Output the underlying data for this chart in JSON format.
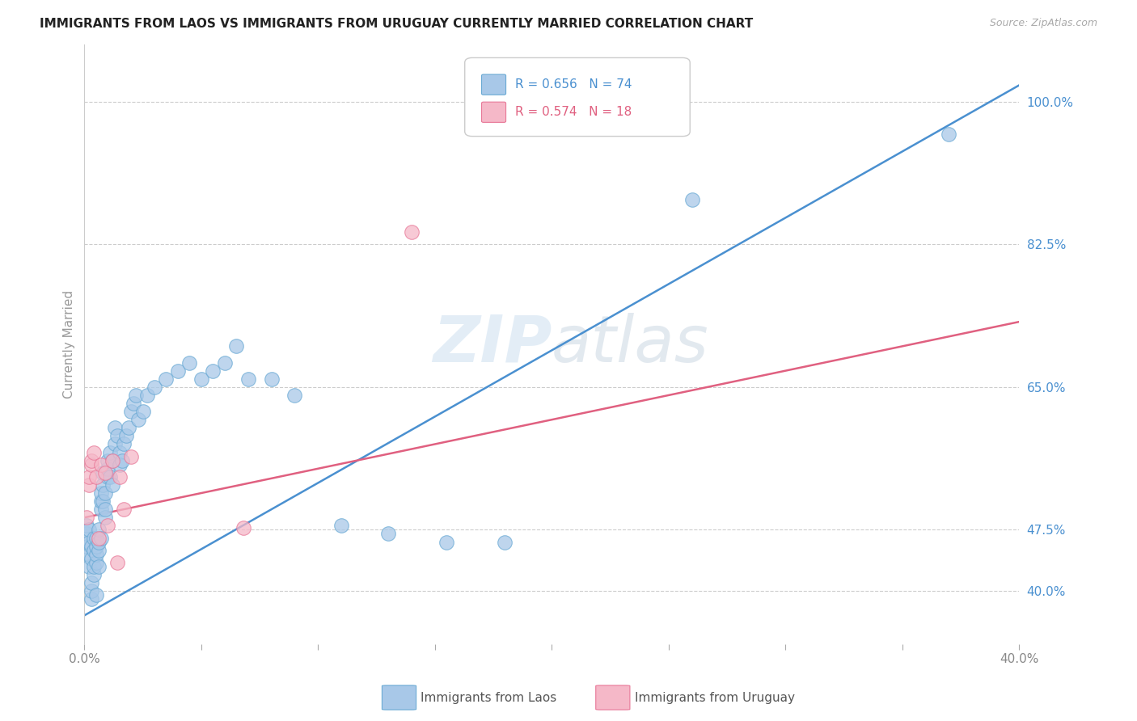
{
  "title": "IMMIGRANTS FROM LAOS VS IMMIGRANTS FROM URUGUAY CURRENTLY MARRIED CORRELATION CHART",
  "source": "Source: ZipAtlas.com",
  "ylabel": "Currently Married",
  "yticks": [
    0.4,
    0.475,
    0.65,
    0.825,
    1.0
  ],
  "ytick_labels": [
    "40.0%",
    "47.5%",
    "65.0%",
    "82.5%",
    "100.0%"
  ],
  "xmin": 0.0,
  "xmax": 0.4,
  "ymin": 0.335,
  "ymax": 1.07,
  "laos_color": "#a8c8e8",
  "laos_edge": "#6aaad4",
  "laos_line_color": "#4a90d0",
  "uruguay_color": "#f5b8c8",
  "uruguay_edge": "#e87898",
  "uruguay_line_color": "#e06080",
  "laos_R": 0.656,
  "laos_N": 74,
  "uruguay_R": 0.574,
  "uruguay_N": 18,
  "laos_scatter_x": [
    0.001,
    0.001,
    0.001,
    0.002,
    0.002,
    0.002,
    0.002,
    0.003,
    0.003,
    0.003,
    0.003,
    0.003,
    0.004,
    0.004,
    0.004,
    0.004,
    0.005,
    0.005,
    0.005,
    0.005,
    0.005,
    0.006,
    0.006,
    0.006,
    0.006,
    0.007,
    0.007,
    0.007,
    0.007,
    0.008,
    0.008,
    0.008,
    0.009,
    0.009,
    0.009,
    0.01,
    0.01,
    0.01,
    0.011,
    0.011,
    0.012,
    0.012,
    0.013,
    0.013,
    0.014,
    0.015,
    0.015,
    0.016,
    0.017,
    0.018,
    0.019,
    0.02,
    0.021,
    0.022,
    0.023,
    0.025,
    0.027,
    0.03,
    0.035,
    0.04,
    0.045,
    0.05,
    0.055,
    0.06,
    0.065,
    0.07,
    0.08,
    0.09,
    0.11,
    0.13,
    0.155,
    0.18,
    0.26,
    0.37
  ],
  "laos_scatter_y": [
    0.455,
    0.47,
    0.48,
    0.43,
    0.445,
    0.46,
    0.475,
    0.39,
    0.4,
    0.41,
    0.44,
    0.455,
    0.42,
    0.43,
    0.45,
    0.465,
    0.435,
    0.445,
    0.455,
    0.465,
    0.395,
    0.43,
    0.45,
    0.46,
    0.475,
    0.5,
    0.51,
    0.52,
    0.465,
    0.51,
    0.53,
    0.545,
    0.49,
    0.5,
    0.52,
    0.54,
    0.55,
    0.56,
    0.57,
    0.54,
    0.56,
    0.53,
    0.58,
    0.6,
    0.59,
    0.57,
    0.555,
    0.56,
    0.58,
    0.59,
    0.6,
    0.62,
    0.63,
    0.64,
    0.61,
    0.62,
    0.64,
    0.65,
    0.66,
    0.67,
    0.68,
    0.66,
    0.67,
    0.68,
    0.7,
    0.66,
    0.66,
    0.64,
    0.48,
    0.47,
    0.46,
    0.46,
    0.88,
    0.96
  ],
  "uruguay_scatter_x": [
    0.001,
    0.002,
    0.002,
    0.003,
    0.003,
    0.004,
    0.005,
    0.006,
    0.007,
    0.009,
    0.01,
    0.012,
    0.014,
    0.015,
    0.017,
    0.02,
    0.068,
    0.14
  ],
  "uruguay_scatter_y": [
    0.49,
    0.53,
    0.54,
    0.555,
    0.56,
    0.57,
    0.54,
    0.465,
    0.555,
    0.545,
    0.48,
    0.56,
    0.435,
    0.54,
    0.5,
    0.565,
    0.477,
    0.84
  ],
  "laos_line_x": [
    0.0,
    0.4
  ],
  "laos_line_y": [
    0.37,
    1.02
  ],
  "uruguay_line_x": [
    0.0,
    0.4
  ],
  "uruguay_line_y": [
    0.49,
    0.73
  ],
  "watermark": "ZIPatlas",
  "background_color": "#ffffff",
  "grid_color": "#cccccc",
  "title_color": "#222222",
  "right_label_color_blue": "#4a90d0",
  "right_label_color_pink": "#e06080"
}
